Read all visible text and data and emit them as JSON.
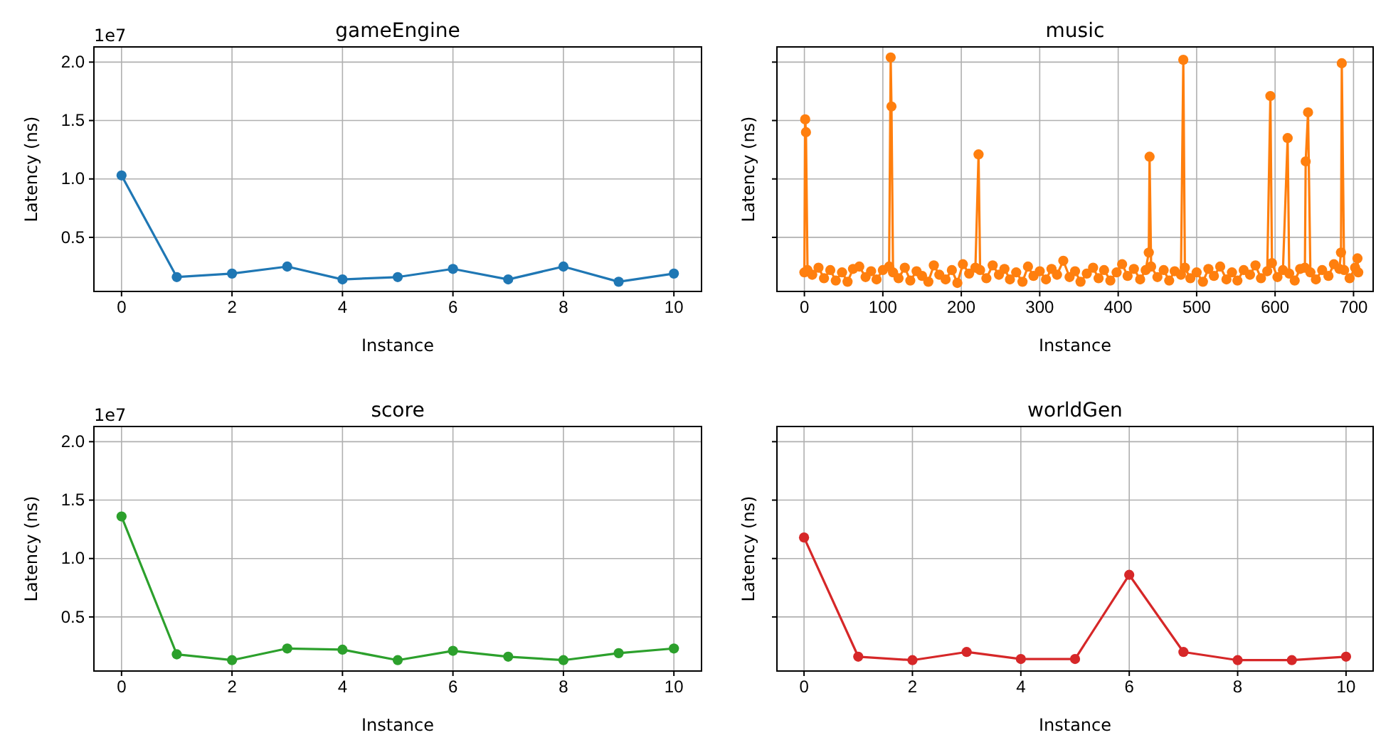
{
  "chart_data": [
    {
      "type": "line",
      "title": "gameEngine",
      "xlabel": "Instance",
      "ylabel": "Latency (ns)",
      "annotations": [
        "1e7"
      ],
      "grid": true,
      "marker": "circle",
      "line_style": "solid",
      "x": [
        0,
        1,
        2,
        3,
        4,
        5,
        6,
        7,
        8,
        9,
        10
      ],
      "series": [
        {
          "color": "#1f77b4",
          "values": [
            1.03,
            0.16,
            0.19,
            0.25,
            0.14,
            0.16,
            0.23,
            0.14,
            0.25,
            0.12,
            0.19
          ]
        }
      ],
      "xlim": [
        -0.5,
        10.5
      ],
      "xticks": [
        0,
        2,
        4,
        6,
        8,
        10
      ],
      "ylim": [
        0.037,
        2.13
      ],
      "yticks": [
        {
          "value": 0.5,
          "label": "0.5"
        },
        {
          "value": 1,
          "label": "1.0"
        },
        {
          "value": 1.5,
          "label": "1.5"
        },
        {
          "value": 2,
          "label": "2.0"
        }
      ]
    },
    {
      "type": "line",
      "title": "music",
      "xlabel": "Instance",
      "ylabel": "Latency (ns)",
      "grid": true,
      "marker": "circle",
      "line_style": "solid",
      "tick_labels": "x",
      "x": [
        0,
        1,
        2,
        4,
        10,
        18,
        25,
        33,
        40,
        48,
        55,
        62,
        70,
        78,
        85,
        92,
        100,
        108,
        110,
        111,
        113,
        120,
        128,
        135,
        143,
        150,
        158,
        165,
        172,
        180,
        188,
        195,
        202,
        210,
        218,
        222,
        224,
        232,
        240,
        248,
        255,
        262,
        270,
        278,
        285,
        292,
        300,
        308,
        315,
        322,
        330,
        338,
        345,
        352,
        360,
        368,
        375,
        382,
        390,
        398,
        405,
        412,
        420,
        428,
        435,
        439,
        440,
        442,
        450,
        458,
        465,
        472,
        480,
        483,
        485,
        492,
        500,
        508,
        515,
        522,
        530,
        538,
        545,
        552,
        560,
        568,
        575,
        582,
        590,
        594,
        596,
        603,
        610,
        616,
        618,
        625,
        632,
        638,
        639,
        642,
        645,
        652,
        660,
        668,
        675,
        682,
        684,
        685,
        688,
        695,
        702,
        705,
        706
      ],
      "series": [
        {
          "color": "#ff7f0e",
          "values": [
            0.2,
            1.51,
            1.4,
            0.22,
            0.18,
            0.24,
            0.15,
            0.22,
            0.13,
            0.2,
            0.12,
            0.23,
            0.25,
            0.16,
            0.21,
            0.14,
            0.22,
            0.25,
            2.04,
            1.62,
            0.2,
            0.15,
            0.24,
            0.13,
            0.21,
            0.17,
            0.12,
            0.26,
            0.18,
            0.14,
            0.22,
            0.11,
            0.27,
            0.19,
            0.24,
            1.21,
            0.22,
            0.15,
            0.26,
            0.18,
            0.23,
            0.14,
            0.2,
            0.12,
            0.25,
            0.17,
            0.21,
            0.14,
            0.23,
            0.18,
            0.3,
            0.16,
            0.21,
            0.12,
            0.19,
            0.24,
            0.15,
            0.22,
            0.13,
            0.2,
            0.27,
            0.17,
            0.23,
            0.14,
            0.22,
            0.37,
            1.19,
            0.25,
            0.16,
            0.22,
            0.13,
            0.21,
            0.18,
            2.02,
            0.24,
            0.15,
            0.2,
            0.12,
            0.23,
            0.17,
            0.25,
            0.14,
            0.2,
            0.13,
            0.22,
            0.18,
            0.26,
            0.15,
            0.21,
            1.71,
            0.28,
            0.16,
            0.22,
            1.35,
            0.19,
            0.13,
            0.23,
            0.24,
            1.15,
            1.57,
            0.2,
            0.14,
            0.22,
            0.17,
            0.27,
            0.23,
            0.37,
            1.99,
            0.22,
            0.15,
            0.24,
            0.32,
            0.2
          ]
        }
      ],
      "xlim": [
        -35,
        725
      ],
      "xticks": [
        0,
        100,
        200,
        300,
        400,
        500,
        600,
        700
      ],
      "ylim": [
        0.037,
        2.13
      ],
      "yticks": [
        {
          "value": 0.5,
          "label": null
        },
        {
          "value": 1,
          "label": null
        },
        {
          "value": 1.5,
          "label": null
        },
        {
          "value": 2,
          "label": null
        }
      ]
    },
    {
      "type": "line",
      "title": "score",
      "xlabel": "Instance",
      "ylabel": "Latency (ns)",
      "annotations": [
        "1e7"
      ],
      "grid": true,
      "marker": "circle",
      "line_style": "solid",
      "x": [
        0,
        1,
        2,
        3,
        4,
        5,
        6,
        7,
        8,
        9,
        10
      ],
      "series": [
        {
          "color": "#2ca02c",
          "values": [
            1.36,
            0.18,
            0.13,
            0.23,
            0.22,
            0.13,
            0.21,
            0.16,
            0.13,
            0.19,
            0.23
          ]
        }
      ],
      "xlim": [
        -0.5,
        10.5
      ],
      "xticks": [
        0,
        2,
        4,
        6,
        8,
        10
      ],
      "ylim": [
        0.037,
        2.13
      ],
      "yticks": [
        {
          "value": 0.5,
          "label": "0.5"
        },
        {
          "value": 1,
          "label": "1.0"
        },
        {
          "value": 1.5,
          "label": "1.5"
        },
        {
          "value": 2,
          "label": "2.0"
        }
      ]
    },
    {
      "type": "line",
      "title": "worldGen",
      "xlabel": "Instance",
      "ylabel": "Latency (ns)",
      "grid": true,
      "marker": "circle",
      "line_style": "solid",
      "tick_labels": "x",
      "x": [
        0,
        1,
        2,
        3,
        4,
        5,
        6,
        7,
        8,
        9,
        10
      ],
      "series": [
        {
          "color": "#d62728",
          "values": [
            1.18,
            0.16,
            0.13,
            0.2,
            0.14,
            0.14,
            0.86,
            0.2,
            0.13,
            0.13,
            0.16
          ]
        }
      ],
      "xlim": [
        -0.5,
        10.5
      ],
      "xticks": [
        0,
        2,
        4,
        6,
        8,
        10
      ],
      "ylim": [
        0.037,
        2.13
      ],
      "yticks": [
        {
          "value": 0.5,
          "label": null
        },
        {
          "value": 1,
          "label": null
        },
        {
          "value": 1.5,
          "label": null
        },
        {
          "value": 2,
          "label": null
        }
      ]
    }
  ]
}
